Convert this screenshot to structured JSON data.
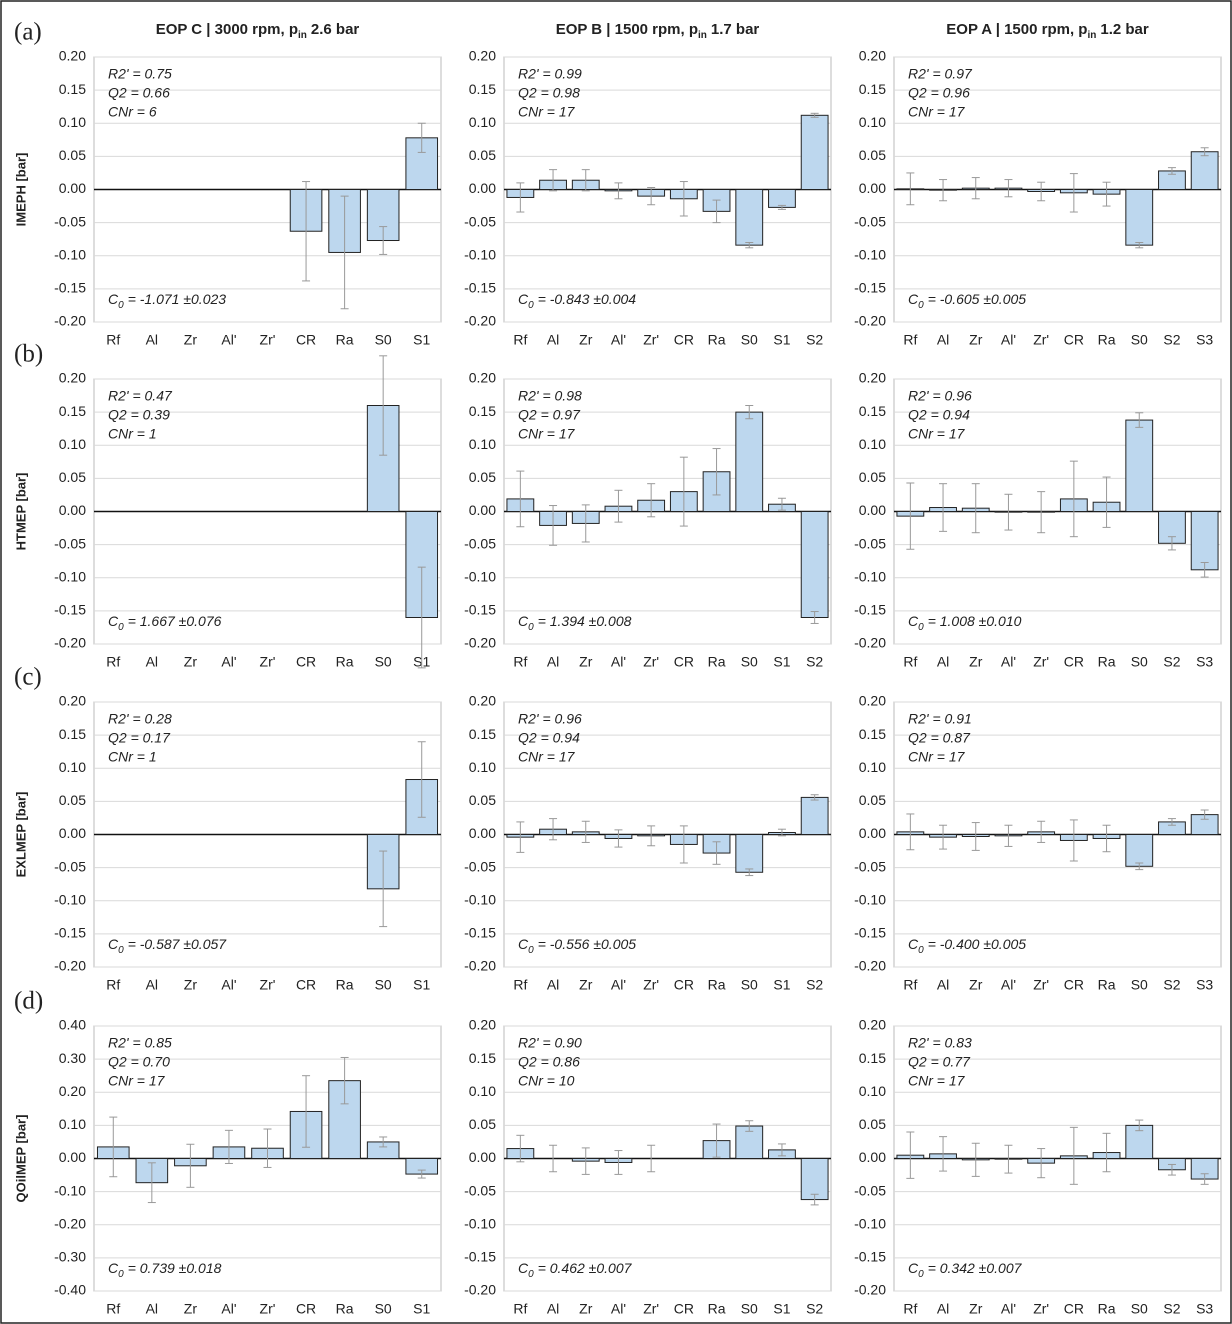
{
  "chart_data": [
    {
      "type": "bar",
      "title": {
        "main": "EOP C | 3000 rpm, p",
        "sub": "in",
        "rest": "2.6 bar"
      },
      "panel_label": "(a)",
      "ylabel": "IMEPH [bar]",
      "categories": [
        "Rf",
        "Al",
        "Zr",
        "Al'",
        "Zr'",
        "CR",
        "Ra",
        "S0",
        "S1"
      ],
      "values": [
        null,
        null,
        null,
        null,
        null,
        -0.063,
        -0.095,
        -0.077,
        0.078
      ],
      "errors": [
        null,
        null,
        null,
        null,
        null,
        0.075,
        0.085,
        0.021,
        0.022
      ],
      "stats": [
        "R2' = 0.75",
        "Q2 = 0.66",
        "CNr = 6"
      ],
      "c0": {
        "main": "C",
        "sub": "0",
        "rest": "= -1.071 ±0.023"
      },
      "color": "#bdd7ee",
      "ylim": [
        -0.2,
        0.2
      ],
      "grid": true,
      "yticks": [
        {
          "value": 0.2,
          "label": "0.20"
        },
        {
          "value": 0.15,
          "label": "0.15"
        },
        {
          "value": 0.1,
          "label": "0.10"
        },
        {
          "value": 0.05,
          "label": "0.05"
        },
        {
          "value": 0,
          "label": "0.00"
        },
        {
          "value": -0.05,
          "label": "-0.05"
        },
        {
          "value": -0.1,
          "label": "-0.10"
        },
        {
          "value": -0.15,
          "label": "-0.15"
        },
        {
          "value": -0.2,
          "label": "-0.20"
        }
      ]
    },
    {
      "type": "bar",
      "title": {
        "main": "EOP B | 1500 rpm, p",
        "sub": "in",
        "rest": "1.7 bar"
      },
      "categories": [
        "Rf",
        "Al",
        "Zr",
        "Al'",
        "Zr'",
        "CR",
        "Ra",
        "S0",
        "S1",
        "S2"
      ],
      "values": [
        -0.012,
        0.014,
        0.014,
        -0.002,
        -0.01,
        -0.014,
        -0.033,
        -0.084,
        -0.027,
        0.112
      ],
      "errors": [
        0.022,
        0.016,
        0.016,
        0.012,
        0.013,
        0.026,
        0.017,
        0.004,
        0.003,
        0.003
      ],
      "stats": [
        "R2' = 0.99",
        "Q2 = 0.98",
        "CNr = 17"
      ],
      "c0": {
        "main": "C",
        "sub": "0",
        "rest": "= -0.843 ±0.004"
      },
      "color": "#bdd7ee",
      "ylim": [
        -0.2,
        0.2
      ],
      "grid": true,
      "yticks": [
        {
          "value": 0.2,
          "label": "0.20"
        },
        {
          "value": 0.15,
          "label": "0.15"
        },
        {
          "value": 0.1,
          "label": "0.10"
        },
        {
          "value": 0.05,
          "label": "0.05"
        },
        {
          "value": 0,
          "label": "0.00"
        },
        {
          "value": -0.05,
          "label": "-0.05"
        },
        {
          "value": -0.1,
          "label": "-0.10"
        },
        {
          "value": -0.15,
          "label": "-0.15"
        },
        {
          "value": -0.2,
          "label": "-0.20"
        }
      ]
    },
    {
      "type": "bar",
      "title": {
        "main": "EOP A | 1500 rpm, p",
        "sub": "in",
        "rest": "1.2 bar"
      },
      "categories": [
        "Rf",
        "Al",
        "Zr",
        "Al'",
        "Zr'",
        "CR",
        "Ra",
        "S0",
        "S2",
        "S3"
      ],
      "values": [
        0.001,
        -0.001,
        0.002,
        0.002,
        -0.003,
        -0.005,
        -0.007,
        -0.084,
        0.028,
        0.057
      ],
      "errors": [
        0.024,
        0.016,
        0.016,
        0.013,
        0.014,
        0.029,
        0.018,
        0.004,
        0.005,
        0.006
      ],
      "stats": [
        "R2' = 0.97",
        "Q2 = 0.96",
        "CNr = 17"
      ],
      "c0": {
        "main": "C",
        "sub": "0",
        "rest": "= -0.605 ±0.005"
      },
      "color": "#bdd7ee",
      "ylim": [
        -0.2,
        0.2
      ],
      "grid": true,
      "yticks": [
        {
          "value": 0.2,
          "label": "0.20"
        },
        {
          "value": 0.15,
          "label": "0.15"
        },
        {
          "value": 0.1,
          "label": "0.10"
        },
        {
          "value": 0.05,
          "label": "0.05"
        },
        {
          "value": 0,
          "label": "0.00"
        },
        {
          "value": -0.05,
          "label": "-0.05"
        },
        {
          "value": -0.1,
          "label": "-0.10"
        },
        {
          "value": -0.15,
          "label": "-0.15"
        },
        {
          "value": -0.2,
          "label": "-0.20"
        }
      ]
    },
    {
      "type": "bar",
      "panel_label": "(b)",
      "ylabel": "HTMEP [bar]",
      "categories": [
        "Rf",
        "Al",
        "Zr",
        "Al'",
        "Zr'",
        "CR",
        "Ra",
        "S0",
        "S1"
      ],
      "values": [
        null,
        null,
        null,
        null,
        null,
        null,
        null,
        0.16,
        -0.16
      ],
      "errors": [
        null,
        null,
        null,
        null,
        null,
        null,
        null,
        0.075,
        0.076
      ],
      "stats": [
        "R2' = 0.47",
        "Q2 = 0.39",
        "CNr = 1"
      ],
      "c0": {
        "main": "C",
        "sub": "0",
        "rest": "= 1.667 ±0.076"
      },
      "color": "#bdd7ee",
      "ylim": [
        -0.2,
        0.2
      ],
      "grid": true,
      "yticks": [
        {
          "value": 0.2,
          "label": "0.20"
        },
        {
          "value": 0.15,
          "label": "0.15"
        },
        {
          "value": 0.1,
          "label": "0.10"
        },
        {
          "value": 0.05,
          "label": "0.05"
        },
        {
          "value": 0,
          "label": "0.00"
        },
        {
          "value": -0.05,
          "label": "-0.05"
        },
        {
          "value": -0.1,
          "label": "-0.10"
        },
        {
          "value": -0.15,
          "label": "-0.15"
        },
        {
          "value": -0.2,
          "label": "-0.20"
        }
      ]
    },
    {
      "type": "bar",
      "categories": [
        "Rf",
        "Al",
        "Zr",
        "Al'",
        "Zr'",
        "CR",
        "Ra",
        "S0",
        "S1",
        "S2"
      ],
      "values": [
        0.019,
        -0.021,
        -0.018,
        0.008,
        0.017,
        0.03,
        0.06,
        0.15,
        0.011,
        -0.16
      ],
      "errors": [
        0.042,
        0.03,
        0.028,
        0.024,
        0.025,
        0.052,
        0.035,
        0.01,
        0.009,
        0.009
      ],
      "stats": [
        "R2' = 0.98",
        "Q2 = 0.97",
        "CNr = 17"
      ],
      "c0": {
        "main": "C",
        "sub": "0",
        "rest": "= 1.394 ±0.008"
      },
      "color": "#bdd7ee",
      "ylim": [
        -0.2,
        0.2
      ],
      "grid": true,
      "yticks": [
        {
          "value": 0.2,
          "label": "0.20"
        },
        {
          "value": 0.15,
          "label": "0.15"
        },
        {
          "value": 0.1,
          "label": "0.10"
        },
        {
          "value": 0.05,
          "label": "0.05"
        },
        {
          "value": 0,
          "label": "0.00"
        },
        {
          "value": -0.05,
          "label": "-0.05"
        },
        {
          "value": -0.1,
          "label": "-0.10"
        },
        {
          "value": -0.15,
          "label": "-0.15"
        },
        {
          "value": -0.2,
          "label": "-0.20"
        }
      ]
    },
    {
      "type": "bar",
      "categories": [
        "Rf",
        "Al",
        "Zr",
        "Al'",
        "Zr'",
        "CR",
        "Ra",
        "S0",
        "S2",
        "S3"
      ],
      "values": [
        -0.007,
        0.006,
        0.005,
        -0.001,
        -0.001,
        0.019,
        0.014,
        0.138,
        -0.048,
        -0.088
      ],
      "errors": [
        0.05,
        0.036,
        0.037,
        0.027,
        0.031,
        0.057,
        0.038,
        0.011,
        0.01,
        0.011
      ],
      "stats": [
        "R2' = 0.96",
        "Q2 = 0.94",
        "CNr = 17"
      ],
      "c0": {
        "main": "C",
        "sub": "0",
        "rest": "= 1.008 ±0.010"
      },
      "color": "#bdd7ee",
      "ylim": [
        -0.2,
        0.2
      ],
      "grid": true,
      "yticks": [
        {
          "value": 0.2,
          "label": "0.20"
        },
        {
          "value": 0.15,
          "label": "0.15"
        },
        {
          "value": 0.1,
          "label": "0.10"
        },
        {
          "value": 0.05,
          "label": "0.05"
        },
        {
          "value": 0,
          "label": "0.00"
        },
        {
          "value": -0.05,
          "label": "-0.05"
        },
        {
          "value": -0.1,
          "label": "-0.10"
        },
        {
          "value": -0.15,
          "label": "-0.15"
        },
        {
          "value": -0.2,
          "label": "-0.20"
        }
      ]
    },
    {
      "type": "bar",
      "panel_label": "(c)",
      "ylabel": "EXLMEP [bar]",
      "categories": [
        "Rf",
        "Al",
        "Zr",
        "Al'",
        "Zr'",
        "CR",
        "Ra",
        "S0",
        "S1"
      ],
      "values": [
        null,
        null,
        null,
        null,
        null,
        null,
        null,
        -0.082,
        0.083
      ],
      "errors": [
        null,
        null,
        null,
        null,
        null,
        null,
        null,
        0.057,
        0.057
      ],
      "stats": [
        "R2' = 0.28",
        "Q2 = 0.17",
        "CNr = 1"
      ],
      "c0": {
        "main": "C",
        "sub": "0",
        "rest": "= -0.587 ±0.057"
      },
      "color": "#bdd7ee",
      "ylim": [
        -0.2,
        0.2
      ],
      "grid": true,
      "yticks": [
        {
          "value": 0.2,
          "label": "0.20"
        },
        {
          "value": 0.15,
          "label": "0.15"
        },
        {
          "value": 0.1,
          "label": "0.10"
        },
        {
          "value": 0.05,
          "label": "0.05"
        },
        {
          "value": 0,
          "label": "0.00"
        },
        {
          "value": -0.05,
          "label": "-0.05"
        },
        {
          "value": -0.1,
          "label": "-0.10"
        },
        {
          "value": -0.15,
          "label": "-0.15"
        },
        {
          "value": -0.2,
          "label": "-0.20"
        }
      ]
    },
    {
      "type": "bar",
      "categories": [
        "Rf",
        "Al",
        "Zr",
        "Al'",
        "Zr'",
        "CR",
        "Ra",
        "S0",
        "S1",
        "S2"
      ],
      "values": [
        -0.004,
        0.008,
        0.004,
        -0.006,
        -0.002,
        -0.015,
        -0.028,
        -0.057,
        0.003,
        0.056
      ],
      "errors": [
        0.023,
        0.016,
        0.016,
        0.013,
        0.015,
        0.028,
        0.017,
        0.005,
        0.005,
        0.004
      ],
      "stats": [
        "R2' = 0.96",
        "Q2 = 0.94",
        "CNr = 17"
      ],
      "c0": {
        "main": "C",
        "sub": "0",
        "rest": "= -0.556 ±0.005"
      },
      "color": "#bdd7ee",
      "ylim": [
        -0.2,
        0.2
      ],
      "grid": true,
      "yticks": [
        {
          "value": 0.2,
          "label": "0.20"
        },
        {
          "value": 0.15,
          "label": "0.15"
        },
        {
          "value": 0.1,
          "label": "0.10"
        },
        {
          "value": 0.05,
          "label": "0.05"
        },
        {
          "value": 0,
          "label": "0.00"
        },
        {
          "value": -0.05,
          "label": "-0.05"
        },
        {
          "value": -0.1,
          "label": "-0.10"
        },
        {
          "value": -0.15,
          "label": "-0.15"
        },
        {
          "value": -0.2,
          "label": "-0.20"
        }
      ]
    },
    {
      "type": "bar",
      "categories": [
        "Rf",
        "Al",
        "Zr",
        "Al'",
        "Zr'",
        "CR",
        "Ra",
        "S0",
        "S2",
        "S3"
      ],
      "values": [
        0.004,
        -0.004,
        -0.003,
        -0.002,
        0.004,
        -0.009,
        -0.006,
        -0.048,
        0.019,
        0.03
      ],
      "errors": [
        0.027,
        0.018,
        0.021,
        0.016,
        0.016,
        0.031,
        0.02,
        0.005,
        0.005,
        0.007
      ],
      "stats": [
        "R2' = 0.91",
        "Q2 = 0.87",
        "CNr = 17"
      ],
      "c0": {
        "main": "C",
        "sub": "0",
        "rest": "= -0.400 ±0.005"
      },
      "color": "#bdd7ee",
      "ylim": [
        -0.2,
        0.2
      ],
      "grid": true,
      "yticks": [
        {
          "value": 0.2,
          "label": "0.20"
        },
        {
          "value": 0.15,
          "label": "0.15"
        },
        {
          "value": 0.1,
          "label": "0.10"
        },
        {
          "value": 0.05,
          "label": "0.05"
        },
        {
          "value": 0,
          "label": "0.00"
        },
        {
          "value": -0.05,
          "label": "-0.05"
        },
        {
          "value": -0.1,
          "label": "-0.10"
        },
        {
          "value": -0.15,
          "label": "-0.15"
        },
        {
          "value": -0.2,
          "label": "-0.20"
        }
      ]
    },
    {
      "type": "bar",
      "panel_label": "(d)",
      "ylabel": "QOilMEP [bar]",
      "categories": [
        "Rf",
        "Al",
        "Zr",
        "Al'",
        "Zr'",
        "CR",
        "Ra",
        "S0",
        "S1"
      ],
      "values": [
        0.035,
        -0.073,
        -0.022,
        0.035,
        0.031,
        0.142,
        0.235,
        0.05,
        -0.047
      ],
      "errors": [
        0.09,
        0.06,
        0.065,
        0.05,
        0.058,
        0.108,
        0.07,
        0.015,
        0.012
      ],
      "stats": [
        "R2' = 0.85",
        "Q2 = 0.70",
        "CNr = 17"
      ],
      "c0": {
        "main": "C",
        "sub": "0",
        "rest": "= 0.739 ±0.018"
      },
      "color": "#bdd7ee",
      "ylim": [
        -0.4,
        0.4
      ],
      "grid": true,
      "yticks": [
        {
          "value": 0.4,
          "label": "0.40"
        },
        {
          "value": 0.3,
          "label": "0.30"
        },
        {
          "value": 0.2,
          "label": "0.20"
        },
        {
          "value": 0.1,
          "label": "0.10"
        },
        {
          "value": 0,
          "label": "0.00"
        },
        {
          "value": -0.1,
          "label": "-0.10"
        },
        {
          "value": -0.2,
          "label": "-0.20"
        },
        {
          "value": -0.3,
          "label": "-0.30"
        },
        {
          "value": -0.4,
          "label": "-0.40"
        }
      ]
    },
    {
      "type": "bar",
      "categories": [
        "Rf",
        "Al",
        "Zr",
        "Al'",
        "Zr'",
        "CR",
        "Ra",
        "S0",
        "S1",
        "S2"
      ],
      "values": [
        0.015,
        0.0,
        -0.004,
        -0.006,
        0.0,
        null,
        0.027,
        0.049,
        0.013,
        -0.062
      ],
      "errors": [
        0.02,
        0.02,
        0.02,
        0.018,
        0.02,
        null,
        0.025,
        0.008,
        0.009,
        0.008
      ],
      "stats": [
        "R2' = 0.90",
        "Q2 = 0.86",
        "CNr = 10"
      ],
      "c0": {
        "main": "C",
        "sub": "0",
        "rest": "= 0.462 ±0.007"
      },
      "color": "#bdd7ee",
      "ylim": [
        -0.2,
        0.2
      ],
      "grid": true,
      "yticks": [
        {
          "value": 0.2,
          "label": "0.20"
        },
        {
          "value": 0.15,
          "label": "0.15"
        },
        {
          "value": 0.1,
          "label": "0.10"
        },
        {
          "value": 0.05,
          "label": "0.05"
        },
        {
          "value": 0,
          "label": "0.00"
        },
        {
          "value": -0.05,
          "label": "-0.05"
        },
        {
          "value": -0.1,
          "label": "-0.10"
        },
        {
          "value": -0.15,
          "label": "-0.15"
        },
        {
          "value": -0.2,
          "label": "-0.20"
        }
      ]
    },
    {
      "type": "bar",
      "categories": [
        "Rf",
        "Al",
        "Zr",
        "Al'",
        "Zr'",
        "CR",
        "Ra",
        "S0",
        "S2",
        "S3"
      ],
      "values": [
        0.005,
        0.007,
        -0.002,
        -0.001,
        -0.007,
        0.004,
        0.009,
        0.05,
        -0.017,
        -0.031
      ],
      "errors": [
        0.035,
        0.026,
        0.025,
        0.021,
        0.022,
        0.043,
        0.029,
        0.008,
        0.008,
        0.008
      ],
      "stats": [
        "R2' = 0.83",
        "Q2 = 0.77",
        "CNr = 17"
      ],
      "c0": {
        "main": "C",
        "sub": "0",
        "rest": "= 0.342 ±0.007"
      },
      "color": "#bdd7ee",
      "ylim": [
        -0.2,
        0.2
      ],
      "grid": true,
      "yticks": [
        {
          "value": 0.2,
          "label": "0.20"
        },
        {
          "value": 0.15,
          "label": "0.15"
        },
        {
          "value": 0.1,
          "label": "0.10"
        },
        {
          "value": 0.05,
          "label": "0.05"
        },
        {
          "value": 0,
          "label": "0.00"
        },
        {
          "value": -0.05,
          "label": "-0.05"
        },
        {
          "value": -0.1,
          "label": "-0.10"
        },
        {
          "value": -0.15,
          "label": "-0.15"
        },
        {
          "value": -0.2,
          "label": "-0.20"
        }
      ]
    }
  ]
}
